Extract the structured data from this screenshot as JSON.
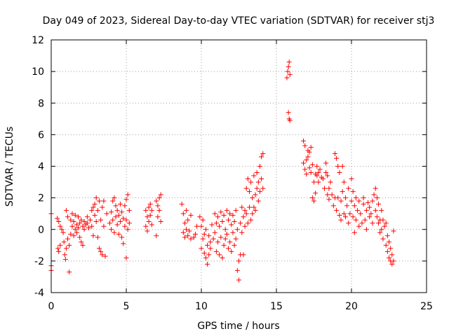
{
  "chart_data": {
    "type": "scatter",
    "title": "Day 049 of 2023, Sidereal Day-to-day VTEC variation (SDTVAR) for receiver stj3",
    "xlabel": "GPS time / hours",
    "ylabel": "SDTVAR / TECUs",
    "xlim": [
      0,
      25
    ],
    "ylim": [
      -4,
      12
    ],
    "xticks": [
      "0",
      "5",
      "10",
      "15",
      "20",
      "25"
    ],
    "yticks": [
      "-4",
      "-2",
      "0",
      "2",
      "4",
      "6",
      "8",
      "10",
      "12"
    ],
    "grid": true,
    "marker": "plus",
    "color": "#ff0000",
    "series": [
      {
        "name": "SDTVAR",
        "points": [
          [
            0.0,
            1.0
          ],
          [
            0.0,
            -2.3
          ],
          [
            0.0,
            -2.6
          ],
          [
            0.4,
            0.7
          ],
          [
            0.45,
            -1.2
          ],
          [
            0.5,
            0.5
          ],
          [
            0.5,
            -1.4
          ],
          [
            0.6,
            -1.0
          ],
          [
            0.6,
            0.2
          ],
          [
            0.7,
            0.0
          ],
          [
            0.8,
            -0.2
          ],
          [
            0.85,
            -0.8
          ],
          [
            0.9,
            -1.6
          ],
          [
            0.95,
            -1.9
          ],
          [
            1.0,
            1.2
          ],
          [
            1.0,
            -1.2
          ],
          [
            1.1,
            -0.6
          ],
          [
            1.1,
            0.8
          ],
          [
            1.2,
            -2.7
          ],
          [
            1.2,
            -1.0
          ],
          [
            1.3,
            0.6
          ],
          [
            1.3,
            -0.3
          ],
          [
            1.4,
            0.2
          ],
          [
            1.4,
            1.0
          ],
          [
            1.5,
            -0.4
          ],
          [
            1.5,
            0.5
          ],
          [
            1.6,
            0.0
          ],
          [
            1.6,
            0.9
          ],
          [
            1.7,
            0.3
          ],
          [
            1.7,
            -0.2
          ],
          [
            1.8,
            0.8
          ],
          [
            1.8,
            0.1
          ],
          [
            1.9,
            0.4
          ],
          [
            1.9,
            -0.5
          ],
          [
            2.0,
            0.6
          ],
          [
            2.0,
            -0.8
          ],
          [
            2.1,
            0.2
          ],
          [
            2.1,
            -1.0
          ],
          [
            2.2,
            0.5
          ],
          [
            2.2,
            0.0
          ],
          [
            2.3,
            0.3
          ],
          [
            2.4,
            0.8
          ],
          [
            2.4,
            0.4
          ],
          [
            2.5,
            0.1
          ],
          [
            2.6,
            0.6
          ],
          [
            2.7,
            1.2
          ],
          [
            2.7,
            0.2
          ],
          [
            2.8,
            1.4
          ],
          [
            2.8,
            -0.4
          ],
          [
            2.9,
            0.9
          ],
          [
            2.9,
            1.6
          ],
          [
            3.0,
            0.5
          ],
          [
            3.0,
            2.0
          ],
          [
            3.1,
            -0.5
          ],
          [
            3.1,
            1.2
          ],
          [
            3.2,
            1.8
          ],
          [
            3.2,
            -1.2
          ],
          [
            3.3,
            0.6
          ],
          [
            3.3,
            -1.4
          ],
          [
            3.4,
            1.4
          ],
          [
            3.4,
            -1.6
          ],
          [
            3.5,
            0.2
          ],
          [
            3.5,
            1.8
          ],
          [
            3.6,
            -1.7
          ],
          [
            3.7,
            1.0
          ],
          [
            3.9,
            0.4
          ],
          [
            4.0,
            1.1
          ],
          [
            4.0,
            0.0
          ],
          [
            4.1,
            0.6
          ],
          [
            4.1,
            1.8
          ],
          [
            4.2,
            2.0
          ],
          [
            4.2,
            -0.2
          ],
          [
            4.3,
            0.8
          ],
          [
            4.3,
            1.5
          ],
          [
            4.4,
            0.3
          ],
          [
            4.4,
            1.2
          ],
          [
            4.5,
            -0.3
          ],
          [
            4.5,
            0.9
          ],
          [
            4.6,
            1.6
          ],
          [
            4.6,
            0.5
          ],
          [
            4.7,
            -0.5
          ],
          [
            4.7,
            1.1
          ],
          [
            4.8,
            -0.9
          ],
          [
            4.8,
            0.7
          ],
          [
            4.9,
            1.5
          ],
          [
            4.9,
            0.2
          ],
          [
            5.0,
            -1.8
          ],
          [
            5.0,
            0.6
          ],
          [
            5.0,
            1.9
          ],
          [
            5.1,
            2.2
          ],
          [
            5.1,
            0.0
          ],
          [
            5.2,
            1.2
          ],
          [
            5.2,
            0.4
          ],
          [
            6.3,
            1.2
          ],
          [
            6.3,
            0.2
          ],
          [
            6.4,
            0.8
          ],
          [
            6.4,
            -0.1
          ],
          [
            6.5,
            1.4
          ],
          [
            6.5,
            0.5
          ],
          [
            6.6,
            0.9
          ],
          [
            6.6,
            1.6
          ],
          [
            6.7,
            0.3
          ],
          [
            6.7,
            1.2
          ],
          [
            7.0,
            -0.4
          ],
          [
            7.0,
            1.8
          ],
          [
            7.1,
            0.8
          ],
          [
            7.1,
            1.5
          ],
          [
            7.2,
            2.0
          ],
          [
            7.2,
            1.2
          ],
          [
            7.3,
            2.2
          ],
          [
            7.3,
            0.5
          ],
          [
            8.7,
            1.6
          ],
          [
            8.8,
            -0.2
          ],
          [
            8.8,
            1.0
          ],
          [
            8.9,
            0.4
          ],
          [
            8.9,
            -0.5
          ],
          [
            9.0,
            1.2
          ],
          [
            9.0,
            0.0
          ],
          [
            9.1,
            0.6
          ],
          [
            9.1,
            -0.4
          ],
          [
            9.2,
            -0.1
          ],
          [
            9.3,
            0.9
          ],
          [
            9.3,
            -0.6
          ],
          [
            9.5,
            -0.5
          ],
          [
            9.6,
            -0.3
          ],
          [
            9.7,
            0.2
          ],
          [
            9.9,
            0.8
          ],
          [
            10.0,
            -1.2
          ],
          [
            10.0,
            0.2
          ],
          [
            10.1,
            -0.6
          ],
          [
            10.1,
            0.6
          ],
          [
            10.2,
            -1.5
          ],
          [
            10.2,
            -0.3
          ],
          [
            10.3,
            -1.8
          ],
          [
            10.3,
            0.0
          ],
          [
            10.4,
            -2.2
          ],
          [
            10.4,
            -1.0
          ],
          [
            10.5,
            -0.4
          ],
          [
            10.5,
            -1.6
          ],
          [
            10.6,
            -0.8
          ],
          [
            10.6,
            -1.2
          ],
          [
            10.7,
            0.3
          ],
          [
            10.8,
            -0.6
          ],
          [
            10.9,
            1.0
          ],
          [
            10.9,
            -0.2
          ],
          [
            11.0,
            0.4
          ],
          [
            11.0,
            -1.4
          ],
          [
            11.1,
            0.8
          ],
          [
            11.1,
            -0.8
          ],
          [
            11.2,
            -1.6
          ],
          [
            11.2,
            0.2
          ],
          [
            11.3,
            1.1
          ],
          [
            11.3,
            -0.5
          ],
          [
            11.4,
            0.5
          ],
          [
            11.4,
            -1.8
          ],
          [
            11.5,
            -1.0
          ],
          [
            11.5,
            0.9
          ],
          [
            11.6,
            0.0
          ],
          [
            11.6,
            -0.6
          ],
          [
            11.7,
            1.2
          ],
          [
            11.7,
            -0.3
          ],
          [
            11.8,
            0.6
          ],
          [
            11.8,
            -1.2
          ],
          [
            11.9,
            1.0
          ],
          [
            11.9,
            -0.8
          ],
          [
            12.0,
            0.3
          ],
          [
            12.0,
            -1.4
          ],
          [
            12.1,
            0.9
          ],
          [
            12.1,
            -0.2
          ],
          [
            12.2,
            -1.0
          ],
          [
            12.2,
            0.5
          ],
          [
            12.3,
            -0.6
          ],
          [
            12.3,
            1.2
          ],
          [
            12.4,
            -2.6
          ],
          [
            12.4,
            0.0
          ],
          [
            12.5,
            -3.2
          ],
          [
            12.5,
            -2.0
          ],
          [
            12.6,
            -1.6
          ],
          [
            12.6,
            0.4
          ],
          [
            12.7,
            1.4
          ],
          [
            12.7,
            -0.2
          ],
          [
            12.8,
            -1.6
          ],
          [
            12.8,
            0.8
          ],
          [
            12.9,
            1.2
          ],
          [
            12.9,
            0.2
          ],
          [
            13.0,
            2.6
          ],
          [
            13.0,
            1.0
          ],
          [
            13.1,
            0.4
          ],
          [
            13.1,
            3.2
          ],
          [
            13.2,
            1.4
          ],
          [
            13.2,
            2.4
          ],
          [
            13.3,
            0.6
          ],
          [
            13.3,
            3.0
          ],
          [
            13.4,
            1.0
          ],
          [
            13.4,
            2.0
          ],
          [
            13.5,
            1.4
          ],
          [
            13.5,
            3.4
          ],
          [
            13.6,
            2.2
          ],
          [
            13.6,
            1.2
          ],
          [
            13.7,
            2.6
          ],
          [
            13.7,
            3.6
          ],
          [
            13.8,
            1.8
          ],
          [
            13.8,
            3.0
          ],
          [
            13.9,
            2.4
          ],
          [
            13.9,
            4.0
          ],
          [
            14.0,
            4.6
          ],
          [
            14.0,
            3.2
          ],
          [
            14.1,
            2.6
          ],
          [
            14.1,
            4.8
          ],
          [
            15.7,
            9.6
          ],
          [
            15.75,
            10.0
          ],
          [
            15.8,
            10.3
          ],
          [
            15.85,
            10.6
          ],
          [
            15.8,
            7.4
          ],
          [
            15.85,
            7.0
          ],
          [
            15.9,
            6.9
          ],
          [
            15.9,
            9.8
          ],
          [
            16.8,
            5.6
          ],
          [
            16.8,
            4.2
          ],
          [
            16.9,
            5.3
          ],
          [
            16.9,
            3.8
          ],
          [
            17.0,
            4.4
          ],
          [
            17.0,
            3.5
          ],
          [
            17.1,
            5.0
          ],
          [
            17.1,
            4.6
          ],
          [
            17.2,
            3.9
          ],
          [
            17.2,
            4.9
          ],
          [
            17.3,
            5.2
          ],
          [
            17.3,
            3.6
          ],
          [
            17.4,
            4.1
          ],
          [
            17.4,
            2.0
          ],
          [
            17.5,
            1.8
          ],
          [
            17.5,
            3.0
          ],
          [
            17.6,
            2.3
          ],
          [
            17.6,
            3.5
          ],
          [
            17.7,
            3.4
          ],
          [
            17.7,
            4.0
          ],
          [
            17.8,
            3.0
          ],
          [
            17.8,
            3.6
          ],
          [
            17.9,
            3.8
          ],
          [
            18.0,
            3.3
          ],
          [
            18.1,
            3.2
          ],
          [
            18.2,
            2.6
          ],
          [
            18.3,
            4.2
          ],
          [
            18.3,
            3.6
          ],
          [
            18.4,
            3.4
          ],
          [
            18.4,
            2.2
          ],
          [
            18.5,
            2.6
          ],
          [
            18.5,
            1.9
          ],
          [
            18.6,
            3.0
          ],
          [
            18.7,
            2.2
          ],
          [
            18.8,
            1.5
          ],
          [
            18.9,
            2.0
          ],
          [
            18.9,
            4.8
          ],
          [
            19.0,
            4.5
          ],
          [
            19.0,
            1.2
          ],
          [
            19.1,
            4.0
          ],
          [
            19.1,
            2.0
          ],
          [
            19.2,
            0.9
          ],
          [
            19.2,
            3.6
          ],
          [
            19.3,
            1.8
          ],
          [
            19.3,
            0.6
          ],
          [
            19.4,
            2.4
          ],
          [
            19.4,
            4.0
          ],
          [
            19.5,
            3.0
          ],
          [
            19.5,
            1.0
          ],
          [
            19.6,
            2.0
          ],
          [
            19.6,
            0.8
          ],
          [
            19.7,
            1.5
          ],
          [
            19.8,
            2.6
          ],
          [
            19.8,
            0.4
          ],
          [
            19.9,
            1.0
          ],
          [
            20.0,
            1.8
          ],
          [
            20.0,
            3.2
          ],
          [
            20.1,
            0.8
          ],
          [
            20.1,
            2.4
          ],
          [
            20.2,
            1.5
          ],
          [
            20.2,
            -0.2
          ],
          [
            20.3,
            0.6
          ],
          [
            20.3,
            2.0
          ],
          [
            20.4,
            1.2
          ],
          [
            20.5,
            0.2
          ],
          [
            20.5,
            1.8
          ],
          [
            20.6,
            1.0
          ],
          [
            20.7,
            0.4
          ],
          [
            20.8,
            1.6
          ],
          [
            20.8,
            2.0
          ],
          [
            20.9,
            0.6
          ],
          [
            21.0,
            1.2
          ],
          [
            21.0,
            0.0
          ],
          [
            21.1,
            1.7
          ],
          [
            21.2,
            0.8
          ],
          [
            21.2,
            1.4
          ],
          [
            21.3,
            1.0
          ],
          [
            21.4,
            1.8
          ],
          [
            21.4,
            0.4
          ],
          [
            21.5,
            2.2
          ],
          [
            21.6,
            2.6
          ],
          [
            21.6,
            1.2
          ],
          [
            21.7,
            0.8
          ],
          [
            21.7,
            2.0
          ],
          [
            21.8,
            0.4
          ],
          [
            21.8,
            1.6
          ],
          [
            21.9,
            0.6
          ],
          [
            21.9,
            -0.2
          ],
          [
            22.0,
            1.2
          ],
          [
            22.0,
            0.0
          ],
          [
            22.1,
            -0.6
          ],
          [
            22.1,
            0.6
          ],
          [
            22.2,
            0.2
          ],
          [
            22.3,
            -1.0
          ],
          [
            22.3,
            0.4
          ],
          [
            22.4,
            -0.4
          ],
          [
            22.4,
            -1.4
          ],
          [
            22.5,
            -0.8
          ],
          [
            22.5,
            -1.8
          ],
          [
            22.6,
            -2.0
          ],
          [
            22.6,
            -1.2
          ],
          [
            22.7,
            -2.2
          ],
          [
            22.7,
            -1.6
          ],
          [
            22.8,
            -0.1
          ],
          [
            22.8,
            -2.0
          ]
        ]
      }
    ]
  }
}
